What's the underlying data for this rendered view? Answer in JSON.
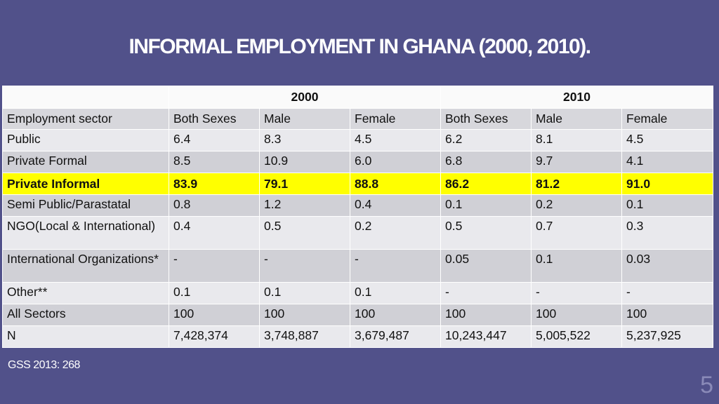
{
  "title": "INFORMAL EMPLOYMENT IN GHANA (2000, 2010).",
  "table": {
    "years": [
      "2000",
      "2010"
    ],
    "headers": [
      "Employment sector",
      "Both Sexes",
      "Male",
      "Female",
      "Both Sexes",
      "Male",
      "Female"
    ],
    "rows": [
      [
        "Public",
        "6.4",
        "8.3",
        "4.5",
        "6.2",
        "8.1",
        "4.5"
      ],
      [
        "Private Formal",
        "8.5",
        "10.9",
        "6.0",
        "6.8",
        "9.7",
        "4.1"
      ],
      [
        "Private Informal",
        "83.9",
        "79.1",
        "88.8",
        "86.2",
        "81.2",
        "91.0"
      ],
      [
        "Semi Public/Parastatal",
        "0.8",
        "1.2",
        "0.4",
        "0.1",
        "0.2",
        "0.1"
      ],
      [
        "NGO(Local & International)",
        "0.4",
        "0.5",
        "0.2",
        "0.5",
        "0.7",
        "0.3"
      ],
      [
        "International Organizations*",
        "-",
        "-",
        "-",
        "0.05",
        "0.1",
        "0.03"
      ],
      [
        "Other**",
        "0.1",
        "0.1",
        "0.1",
        "-",
        "-",
        "-"
      ],
      [
        "All Sectors",
        "100",
        "100",
        "100",
        "100",
        "100",
        "100"
      ],
      [
        "N",
        "7,428,374",
        "3,748,887",
        "3,679,487",
        "10,243,447",
        "5,005,522",
        "5,237,925"
      ]
    ]
  },
  "source": "GSS 2013: 268",
  "page_number": "5",
  "colors": {
    "background": "#51518a",
    "highlight": "#ffff00"
  }
}
